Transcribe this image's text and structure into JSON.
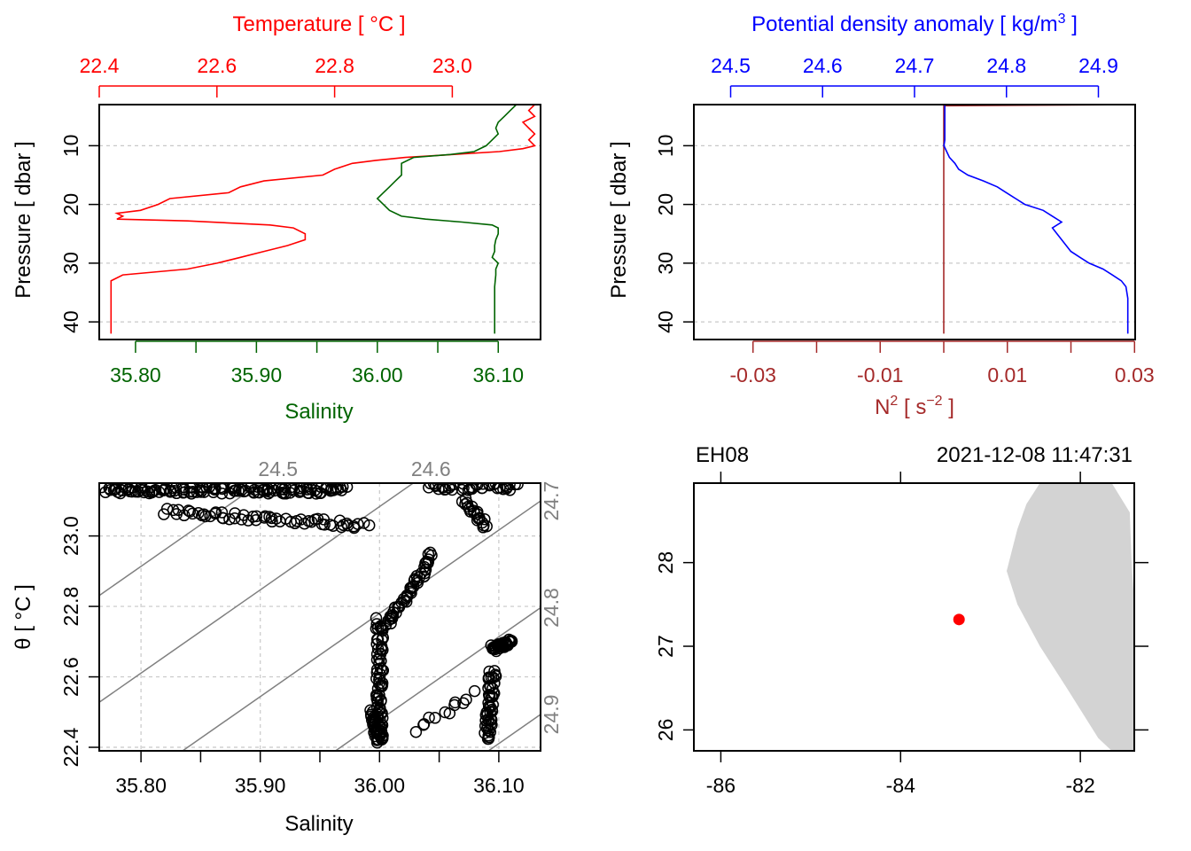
{
  "chart_data": [
    {
      "type": "line",
      "panel": "temperature-salinity-profile",
      "top_axis": {
        "label": "Temperature [ °C ]",
        "ticks": [
          "22.4",
          "22.6",
          "22.8",
          "23.0"
        ],
        "range": [
          22.4,
          23.15
        ],
        "color": "#ff0000"
      },
      "bottom_axis": {
        "label": "Salinity",
        "ticks": [
          "35.80",
          "35.90",
          "36.00",
          "36.10"
        ],
        "range": [
          35.77,
          36.135
        ],
        "color": "#006400"
      },
      "y_axis": {
        "label": "Pressure [ dbar ]",
        "ticks": [
          "10",
          "20",
          "30",
          "40"
        ],
        "range": [
          3,
          43
        ],
        "inverted": true
      },
      "series": [
        {
          "name": "Temperature",
          "color": "#ff0000",
          "axis": "top",
          "points": [
            [
              23.14,
              3
            ],
            [
              23.13,
              4
            ],
            [
              23.14,
              5
            ],
            [
              23.12,
              6
            ],
            [
              23.13,
              7
            ],
            [
              23.14,
              8
            ],
            [
              23.13,
              9
            ],
            [
              23.14,
              10
            ],
            [
              23.12,
              10.5
            ],
            [
              23.08,
              11
            ],
            [
              23.0,
              11.5
            ],
            [
              22.92,
              12
            ],
            [
              22.87,
              12.5
            ],
            [
              22.83,
              13
            ],
            [
              22.8,
              14
            ],
            [
              22.78,
              15
            ],
            [
              22.68,
              16
            ],
            [
              22.64,
              17
            ],
            [
              22.62,
              18
            ],
            [
              22.52,
              19
            ],
            [
              22.5,
              20
            ],
            [
              22.47,
              21
            ],
            [
              22.43,
              21.5
            ],
            [
              22.44,
              22
            ],
            [
              22.43,
              22.5
            ],
            [
              22.55,
              22.8
            ],
            [
              22.69,
              23.5
            ],
            [
              22.73,
              24
            ],
            [
              22.75,
              25
            ],
            [
              22.75,
              26
            ],
            [
              22.72,
              27
            ],
            [
              22.68,
              28
            ],
            [
              22.64,
              29
            ],
            [
              22.6,
              30
            ],
            [
              22.55,
              31
            ],
            [
              22.44,
              32
            ],
            [
              22.42,
              33
            ],
            [
              22.42,
              34
            ],
            [
              22.42,
              36
            ],
            [
              22.42,
              38
            ],
            [
              22.42,
              40
            ],
            [
              22.42,
              42
            ]
          ]
        },
        {
          "name": "Salinity",
          "color": "#006400",
          "axis": "bottom",
          "points": [
            [
              35.775,
              3
            ],
            [
              36.115,
              3
            ],
            [
              36.11,
              4
            ],
            [
              36.105,
              5
            ],
            [
              36.1,
              6
            ],
            [
              36.098,
              7
            ],
            [
              36.1,
              8
            ],
            [
              36.095,
              9
            ],
            [
              36.09,
              10
            ],
            [
              36.08,
              11
            ],
            [
              36.06,
              11.5
            ],
            [
              36.03,
              12
            ],
            [
              36.02,
              13
            ],
            [
              36.02,
              14
            ],
            [
              36.02,
              15
            ],
            [
              36.015,
              16
            ],
            [
              36.01,
              17
            ],
            [
              36.005,
              18
            ],
            [
              36.0,
              19
            ],
            [
              36.005,
              20
            ],
            [
              36.01,
              21
            ],
            [
              36.02,
              22
            ],
            [
              36.04,
              22.5
            ],
            [
              36.07,
              23
            ],
            [
              36.095,
              23.5
            ],
            [
              36.1,
              24
            ],
            [
              36.1,
              25
            ],
            [
              36.098,
              26
            ],
            [
              36.097,
              27
            ],
            [
              36.097,
              28
            ],
            [
              36.095,
              29
            ],
            [
              36.1,
              30
            ],
            [
              36.098,
              31
            ],
            [
              36.098,
              32
            ],
            [
              36.097,
              34
            ],
            [
              36.097,
              36
            ],
            [
              36.097,
              38
            ],
            [
              36.097,
              40
            ],
            [
              36.097,
              42
            ]
          ]
        }
      ]
    },
    {
      "type": "line",
      "panel": "density-n2-profile",
      "top_axis": {
        "label": "Potential density anomaly [ kg/m",
        "label_sup": "3",
        "label_end": " ]",
        "ticks": [
          "24.5",
          "24.6",
          "24.7",
          "24.8",
          "24.9"
        ],
        "range": [
          24.46,
          24.94
        ],
        "color": "#0000ff"
      },
      "bottom_axis": {
        "label": "N",
        "label_sup": "2",
        "label_mid": " [ s",
        "label_sup2": "−2",
        "label_end": " ]",
        "ticks": [
          "-0.03",
          "-0.01",
          "0.01",
          "0.03"
        ],
        "range": [
          -0.0393,
          0.0301
        ],
        "color": "#a52a2a"
      },
      "y_axis": {
        "label": "Pressure [ dbar ]",
        "ticks": [
          "10",
          "20",
          "30",
          "40"
        ],
        "range": [
          3,
          43
        ],
        "inverted": true
      },
      "series": [
        {
          "name": "Potential density anomaly",
          "color": "#0000ff",
          "axis": "top",
          "points": [
            [
              24.733,
              3
            ],
            [
              24.733,
              6
            ],
            [
              24.733,
              9
            ],
            [
              24.732,
              10
            ],
            [
              24.735,
              11
            ],
            [
              24.738,
              12
            ],
            [
              24.744,
              13
            ],
            [
              24.748,
              14
            ],
            [
              24.758,
              15
            ],
            [
              24.775,
              16
            ],
            [
              24.79,
              17
            ],
            [
              24.8,
              18
            ],
            [
              24.81,
              19
            ],
            [
              24.82,
              20
            ],
            [
              24.84,
              21
            ],
            [
              24.85,
              22
            ],
            [
              24.86,
              23
            ],
            [
              24.85,
              24
            ],
            [
              24.855,
              25
            ],
            [
              24.86,
              26
            ],
            [
              24.865,
              27
            ],
            [
              24.87,
              28
            ],
            [
              24.88,
              29
            ],
            [
              24.89,
              30
            ],
            [
              24.905,
              31
            ],
            [
              24.915,
              32
            ],
            [
              24.925,
              33
            ],
            [
              24.93,
              34
            ],
            [
              24.932,
              36
            ],
            [
              24.932,
              38
            ],
            [
              24.932,
              40
            ],
            [
              24.932,
              42
            ]
          ]
        },
        {
          "name": "N2",
          "color": "#a52a2a",
          "axis": "bottom",
          "points": [
            [
              -0.035,
              3
            ],
            [
              0.03,
              3
            ],
            [
              0.0,
              3.2
            ],
            [
              0.0,
              5
            ],
            [
              0.0,
              10
            ],
            [
              0.0,
              15
            ],
            [
              0.0,
              20
            ],
            [
              0.0,
              25
            ],
            [
              0.0,
              30
            ],
            [
              0.0,
              35
            ],
            [
              0.0,
              42
            ]
          ]
        }
      ]
    },
    {
      "type": "scatter",
      "panel": "ts-diagram",
      "xlabel": "Salinity",
      "ylabel": "θ [ °C ]",
      "x_ticks": [
        "35.80",
        "35.90",
        "36.00",
        "36.10"
      ],
      "y_ticks": [
        "22.4",
        "22.6",
        "22.8",
        "23.0"
      ],
      "xlim": [
        35.765,
        36.135
      ],
      "ylim": [
        22.39,
        23.15
      ],
      "isopycnal_labels": [
        "24.5",
        "24.6",
        "24.7",
        "24.8",
        "24.9"
      ],
      "clusters": [
        {
          "from": [
            35.77,
            23.13
          ],
          "to": [
            35.97,
            23.13
          ],
          "n": 140
        },
        {
          "from": [
            35.82,
            23.07
          ],
          "to": [
            35.99,
            23.03
          ],
          "n": 60
        },
        {
          "from": [
            36.04,
            23.14
          ],
          "to": [
            36.115,
            23.14
          ],
          "n": 40
        },
        {
          "from": [
            36.07,
            23.1
          ],
          "to": [
            36.09,
            23.03
          ],
          "n": 20
        },
        {
          "from": [
            36.045,
            22.95
          ],
          "to": [
            36.005,
            22.74
          ],
          "n": 50
        },
        {
          "from": [
            36.0,
            22.76
          ],
          "to": [
            36.0,
            22.42
          ],
          "n": 70
        },
        {
          "from": [
            35.995,
            22.5
          ],
          "to": [
            36.0,
            22.42
          ],
          "n": 30
        },
        {
          "from": [
            36.095,
            22.68
          ],
          "to": [
            36.11,
            22.7
          ],
          "n": 40
        },
        {
          "from": [
            36.095,
            22.62
          ],
          "to": [
            36.09,
            22.42
          ],
          "n": 50
        },
        {
          "from": [
            36.03,
            22.45
          ],
          "to": [
            36.08,
            22.55
          ],
          "n": 12
        }
      ]
    },
    {
      "type": "map",
      "panel": "station-map",
      "station": "EH08",
      "datetime": "2021-12-08 11:47:31",
      "x_ticks": [
        "-86",
        "-84",
        "-82"
      ],
      "y_ticks": [
        "26",
        "27",
        "28"
      ],
      "xlim": [
        -86.3,
        -81.4
      ],
      "ylim": [
        25.75,
        28.95
      ],
      "station_position": {
        "lon": -83.35,
        "lat": 27.32
      },
      "land_outline": [
        [
          -82.45,
          28.95
        ],
        [
          -81.65,
          28.95
        ],
        [
          -81.45,
          28.6
        ],
        [
          -81.43,
          28.0
        ],
        [
          -81.4,
          27.5
        ],
        [
          -81.4,
          25.75
        ],
        [
          -81.65,
          25.75
        ],
        [
          -81.8,
          25.9
        ],
        [
          -82.15,
          26.5
        ],
        [
          -82.45,
          27.0
        ],
        [
          -82.7,
          27.5
        ],
        [
          -82.82,
          27.9
        ],
        [
          -82.7,
          28.4
        ],
        [
          -82.6,
          28.7
        ]
      ],
      "colors": {
        "land": "#d3d3d3",
        "station": "#ff0000"
      }
    }
  ]
}
